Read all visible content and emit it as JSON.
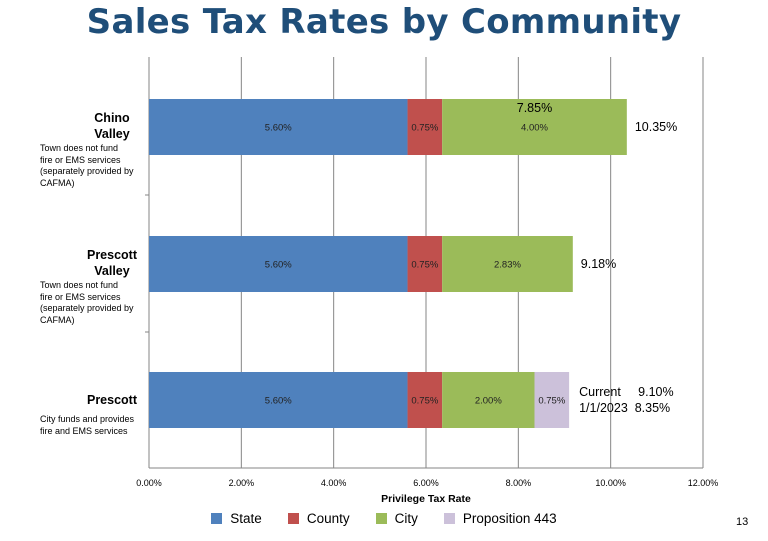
{
  "title": "Sales Tax Rates by Community",
  "page_number": "13",
  "colors": {
    "State": "#4f81bd",
    "County": "#c0504d",
    "City": "#9bbb59",
    "Proposition 443": "#ccc1da",
    "grid": "#868686",
    "axis": "#868686"
  },
  "chart_data": {
    "type": "bar",
    "orientation": "horizontal",
    "stacked": true,
    "title": "Sales Tax Rates by Community",
    "xlabel": "Privilege Tax Rate",
    "xlim": [
      0,
      12
    ],
    "xticks": [
      "0.00%",
      "2.00%",
      "4.00%",
      "6.00%",
      "8.00%",
      "10.00%",
      "12.00%"
    ],
    "grid": "vertical",
    "legend_position": "bottom",
    "categories": [
      {
        "name_line1": "Chino",
        "name_line2": "Valley",
        "note": [
          "Town does not fund",
          "fire or EMS services",
          "(separately provided by",
          "CAFMA)"
        ],
        "total_label": "10.35%",
        "extra_label": "7.85%"
      },
      {
        "name_line1": "Prescott",
        "name_line2": "Valley",
        "note": [
          "Town does not fund",
          "fire or EMS services",
          "(separately provided by",
          "CAFMA)"
        ],
        "total_label": "9.18%"
      },
      {
        "name_line1": "Prescott",
        "name_line2": "",
        "note": [
          "City funds and provides",
          "fire and EMS services"
        ],
        "total_label_lines": [
          "Current     9.10%",
          "1/1/2023  8.35%"
        ]
      }
    ],
    "series": [
      {
        "name": "State",
        "values": [
          5.6,
          5.6,
          5.6
        ],
        "labels": [
          "5.60%",
          "5.60%",
          "5.60%"
        ]
      },
      {
        "name": "County",
        "values": [
          0.75,
          0.75,
          0.75
        ],
        "labels": [
          "0.75%",
          "0.75%",
          "0.75%"
        ]
      },
      {
        "name": "City",
        "values": [
          4.0,
          2.83,
          2.0
        ],
        "labels": [
          "4.00%",
          "2.83%",
          "2.00%"
        ]
      },
      {
        "name": "Proposition 443",
        "values": [
          0,
          0,
          0.75
        ],
        "labels": [
          "",
          "",
          "0.75%"
        ]
      }
    ]
  }
}
